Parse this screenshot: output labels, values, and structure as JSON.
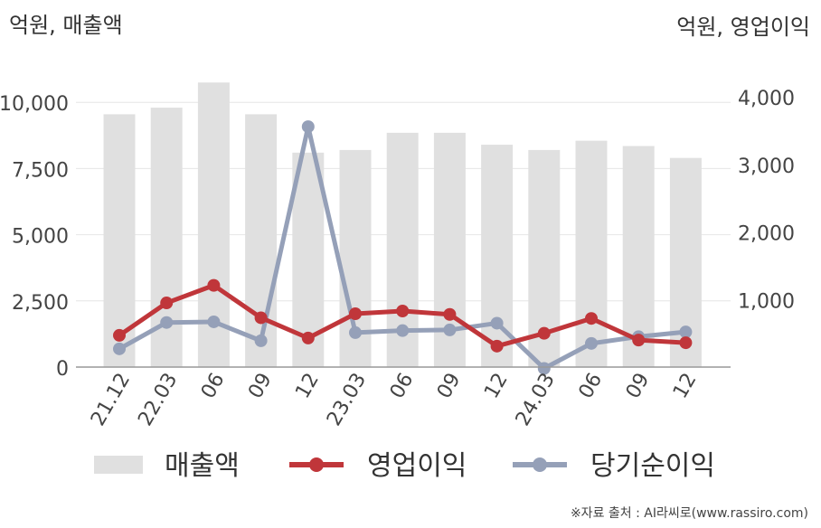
{
  "chart_data": {
    "type": "bar+line",
    "categories": [
      "21.12",
      "22.03",
      "06",
      "09",
      "12",
      "23.03",
      "06",
      "09",
      "12",
      "24.03",
      "06",
      "09",
      "12"
    ],
    "left_axis": {
      "title": "억원, 매출액",
      "ylim": [
        0,
        12500
      ],
      "ticks": [
        0,
        2500,
        5000,
        7500,
        10000
      ],
      "tick_labels": [
        "0",
        "2,500",
        "5,000",
        "7,500",
        "10,000"
      ]
    },
    "right_axis": {
      "title": "억원, 영업이익",
      "ylim": [
        0,
        4900
      ],
      "ticks": [
        1000,
        2000,
        3000,
        4000
      ],
      "tick_labels": [
        "1,000",
        "2,000",
        "3,000",
        "4,000"
      ]
    },
    "series": [
      {
        "name": "매출액",
        "type": "bar",
        "axis": "left",
        "color": "#e0e0e0",
        "values": [
          9550,
          9800,
          10750,
          9550,
          8100,
          8200,
          8850,
          8850,
          8400,
          8200,
          8550,
          8350,
          7900
        ]
      },
      {
        "name": "영업이익",
        "type": "line",
        "axis": "right",
        "color": "#c0363a",
        "values": [
          470,
          950,
          1210,
          730,
          430,
          790,
          830,
          780,
          310,
          500,
          720,
          400,
          360
        ]
      },
      {
        "name": "당기순이익",
        "type": "line",
        "axis": "right",
        "color": "#95a0b8",
        "values": [
          270,
          660,
          670,
          390,
          3560,
          510,
          540,
          550,
          650,
          -20,
          350,
          450,
          520
        ]
      }
    ],
    "grid": true,
    "legend_position": "bottom"
  },
  "source_note": "※자료 출처 : AI라씨로(www.rassiro.com)"
}
